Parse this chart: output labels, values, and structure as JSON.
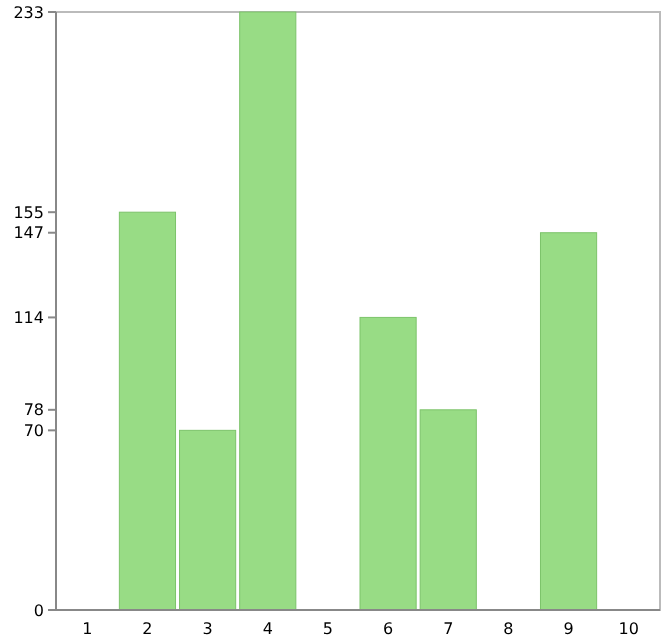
{
  "chart_data": {
    "type": "bar",
    "categories": [
      "1",
      "2",
      "3",
      "4",
      "5",
      "6",
      "7",
      "8",
      "9",
      "10"
    ],
    "values": [
      0,
      155,
      70,
      233,
      0,
      114,
      78,
      0,
      147,
      0
    ],
    "color": "#98dc85",
    "ylim": [
      0,
      233
    ],
    "yticks": [
      0,
      70,
      78,
      114,
      147,
      155,
      233
    ]
  }
}
